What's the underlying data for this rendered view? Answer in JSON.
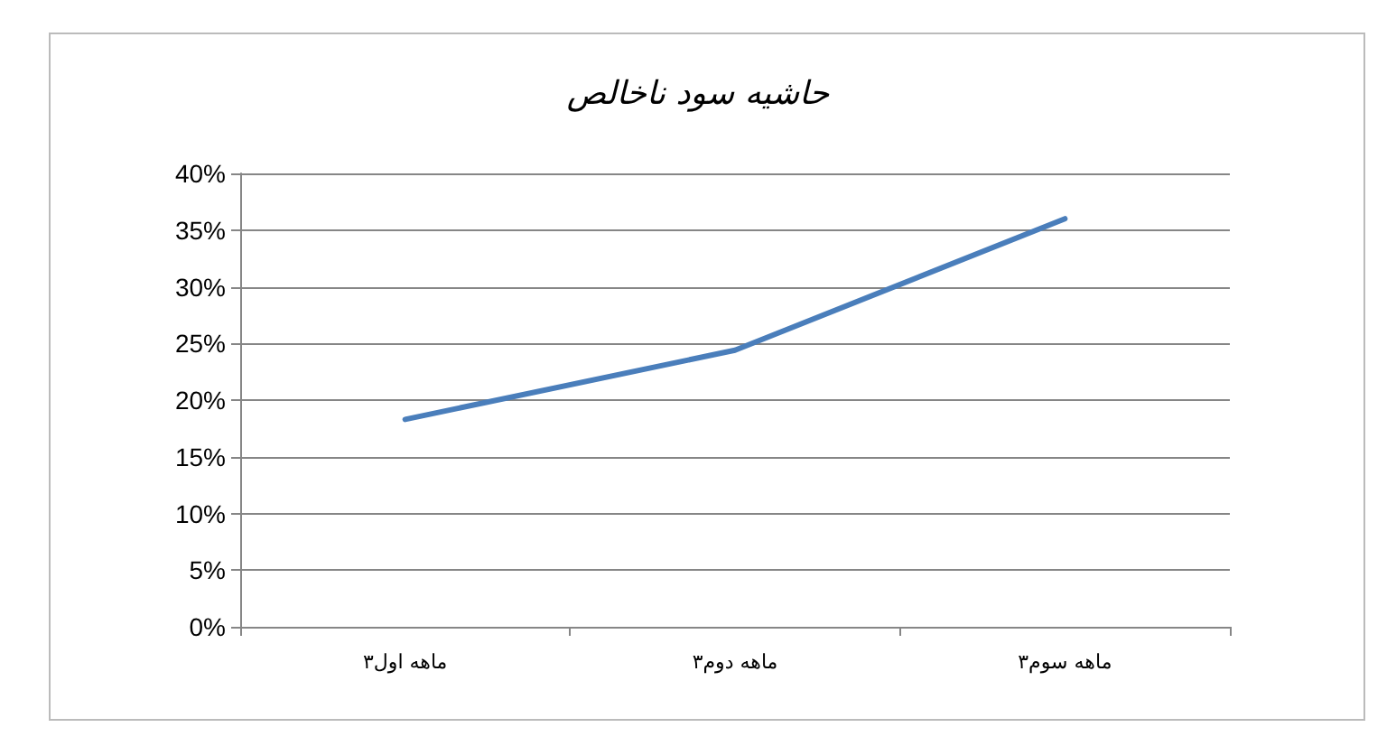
{
  "chart_data": {
    "type": "line",
    "title": "حاشیه سود ناخالص",
    "categories": [
      "۳ماهه اول",
      "۳ماهه دوم",
      "۳ماهه سوم"
    ],
    "series": [
      {
        "color": "#4a7ebb",
        "values": [
          18.3,
          24.4,
          36.0
        ]
      }
    ],
    "ylim": [
      0,
      40
    ],
    "yticks": [
      {
        "value": 0,
        "label": "0%"
      },
      {
        "value": 5,
        "label": "5%"
      },
      {
        "value": 10,
        "label": "10%"
      },
      {
        "value": 15,
        "label": "15%"
      },
      {
        "value": 20,
        "label": "20%"
      },
      {
        "value": 25,
        "label": "25%"
      },
      {
        "value": 30,
        "label": "30%"
      },
      {
        "value": 35,
        "label": "35%"
      },
      {
        "value": 40,
        "label": "40%"
      }
    ],
    "grid": "y",
    "marker": "none",
    "line_style": "solid"
  }
}
